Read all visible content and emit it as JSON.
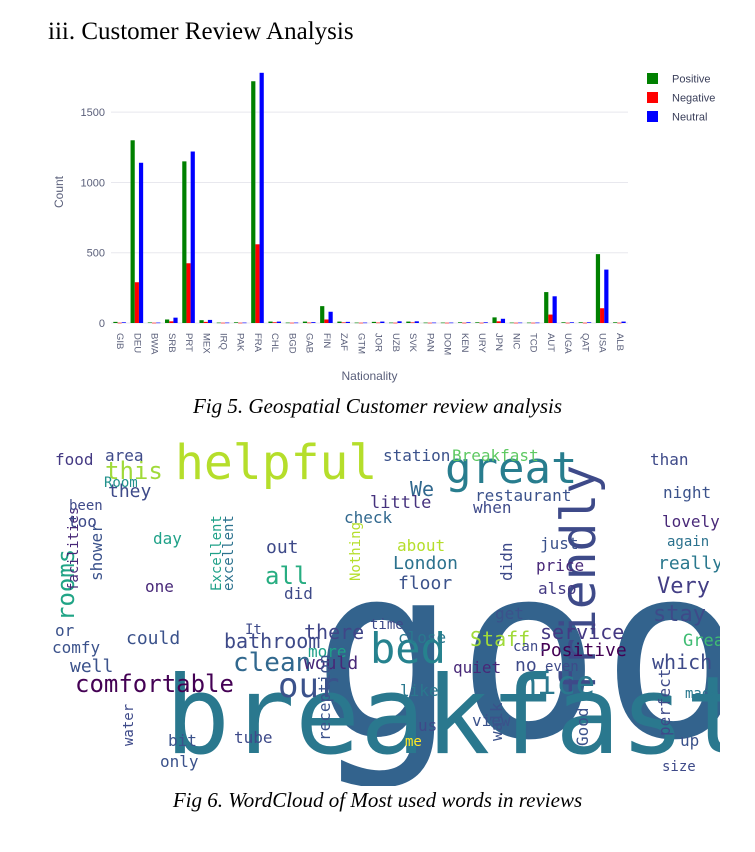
{
  "section_heading": "iii. Customer Review Analysis",
  "fig5_caption": "Fig 5. Geospatial Customer review analysis",
  "fig6_caption": "Fig 6. WordCloud of Most used words in reviews",
  "chart_data": {
    "type": "bar",
    "xlabel": "Nationality",
    "ylabel": "Count",
    "ylim": [
      0,
      1800
    ],
    "yticks": [
      0,
      500,
      1000,
      1500
    ],
    "grid": true,
    "legend_position": "top-right",
    "categories": [
      "GIB",
      "DEU",
      "BWA",
      "SRB",
      "PRT",
      "MEX",
      "IRQ",
      "PAK",
      "FRA",
      "CHL",
      "BGD",
      "GAB",
      "FIN",
      "ZAF",
      "GTM",
      "JOR",
      "UZB",
      "SVK",
      "PAN",
      "DOM",
      "KEN",
      "URY",
      "JPN",
      "NIC",
      "TCD",
      "AUT",
      "UGA",
      "QAT",
      "USA",
      "ALB"
    ],
    "series": [
      {
        "name": "Positive",
        "color": "#008000",
        "values": [
          8,
          1300,
          4,
          25,
          1150,
          20,
          3,
          5,
          1720,
          10,
          3,
          10,
          120,
          10,
          3,
          8,
          3,
          10,
          3,
          3,
          5,
          5,
          40,
          3,
          3,
          220,
          5,
          5,
          490,
          5
        ]
      },
      {
        "name": "Negative",
        "color": "#ff0000",
        "values": [
          2,
          290,
          2,
          12,
          425,
          8,
          2,
          2,
          560,
          5,
          2,
          3,
          25,
          4,
          2,
          3,
          2,
          4,
          2,
          2,
          2,
          2,
          12,
          2,
          2,
          60,
          2,
          2,
          105,
          2
        ]
      },
      {
        "name": "Neutral",
        "color": "#0000ff",
        "values": [
          5,
          1140,
          3,
          38,
          1220,
          22,
          3,
          3,
          1780,
          10,
          3,
          6,
          80,
          8,
          3,
          10,
          12,
          12,
          3,
          3,
          5,
          5,
          30,
          3,
          3,
          190,
          5,
          5,
          380,
          10
        ]
      }
    ]
  },
  "wordcloud": {
    "background": "#ffffff",
    "words": [
      {
        "t": "good",
        "x": 272,
        "y": 295,
        "s": 240,
        "c": "#33638d"
      },
      {
        "t": "breakfast",
        "x": 125,
        "y": 312,
        "s": 108,
        "c": "#2a788e"
      },
      {
        "t": "helpful",
        "x": 135,
        "y": 38,
        "s": 48,
        "c": "#b5de2b"
      },
      {
        "t": "great",
        "x": 405,
        "y": 42,
        "s": 44,
        "c": "#287d8e"
      },
      {
        "t": "friendly",
        "x": 555,
        "y": 255,
        "s": 48,
        "c": "#3e4a89",
        "rot": -90
      },
      {
        "t": "bed",
        "x": 330,
        "y": 222,
        "s": 42,
        "c": "#26828e"
      },
      {
        "t": "comfortable",
        "x": 35,
        "y": 251,
        "s": 24,
        "c": "#440154"
      },
      {
        "t": "our",
        "x": 238,
        "y": 256,
        "s": 34,
        "c": "#3b528b"
      },
      {
        "t": "nice",
        "x": 478,
        "y": 253,
        "s": 32,
        "c": "#2a788e"
      },
      {
        "t": "rooms",
        "x": 34,
        "y": 180,
        "s": 24,
        "c": "#20a486",
        "rot": -90
      },
      {
        "t": "this",
        "x": 65,
        "y": 38,
        "s": 24,
        "c": "#a0da39"
      },
      {
        "t": "they",
        "x": 68,
        "y": 56,
        "s": 18,
        "c": "#3e4a89"
      },
      {
        "t": "Room",
        "x": 64,
        "y": 46,
        "s": 14,
        "c": "#21918c"
      },
      {
        "t": "food",
        "x": 15,
        "y": 24,
        "s": 16,
        "c": "#443983"
      },
      {
        "t": "area",
        "x": 65,
        "y": 20,
        "s": 16,
        "c": "#3e4a89"
      },
      {
        "t": "station",
        "x": 343,
        "y": 20,
        "s": 16,
        "c": "#3b528b"
      },
      {
        "t": "Breakfast",
        "x": 412,
        "y": 20,
        "s": 16,
        "c": "#5ec962"
      },
      {
        "t": "We",
        "x": 370,
        "y": 55,
        "s": 20,
        "c": "#31688e"
      },
      {
        "t": "little",
        "x": 330,
        "y": 67,
        "s": 17,
        "c": "#46327e"
      },
      {
        "t": "restaurant",
        "x": 435,
        "y": 60,
        "s": 16,
        "c": "#3b528b"
      },
      {
        "t": "night",
        "x": 623,
        "y": 57,
        "s": 16,
        "c": "#3b528b"
      },
      {
        "t": "lovely",
        "x": 622,
        "y": 86,
        "s": 16,
        "c": "#482878"
      },
      {
        "t": "again",
        "x": 627,
        "y": 105,
        "s": 14,
        "c": "#2c728e"
      },
      {
        "t": "really",
        "x": 618,
        "y": 128,
        "s": 18,
        "c": "#2a788e"
      },
      {
        "t": "Very",
        "x": 617,
        "y": 152,
        "s": 22,
        "c": "#433e85"
      },
      {
        "t": "stay",
        "x": 613,
        "y": 180,
        "s": 22,
        "c": "#3e4a89"
      },
      {
        "t": "Great",
        "x": 643,
        "y": 205,
        "s": 17,
        "c": "#3fbc73"
      },
      {
        "t": "which",
        "x": 612,
        "y": 228,
        "s": 20,
        "c": "#3e4a89"
      },
      {
        "t": "made",
        "x": 645,
        "y": 257,
        "s": 14,
        "c": "#2a788e"
      },
      {
        "t": "clean",
        "x": 193,
        "y": 230,
        "s": 26,
        "c": "#31688e"
      },
      {
        "t": "bathroom",
        "x": 184,
        "y": 207,
        "s": 20,
        "c": "#3e4a89"
      },
      {
        "t": "service",
        "x": 500,
        "y": 198,
        "s": 20,
        "c": "#443983"
      },
      {
        "t": "Positive",
        "x": 500,
        "y": 215,
        "s": 18,
        "c": "#440154"
      },
      {
        "t": "Staff",
        "x": 430,
        "y": 205,
        "s": 20,
        "c": "#a0da39"
      },
      {
        "t": "there",
        "x": 264,
        "y": 198,
        "s": 20,
        "c": "#404688"
      },
      {
        "t": "more",
        "x": 268,
        "y": 216,
        "s": 16,
        "c": "#1fa188"
      },
      {
        "t": "would",
        "x": 264,
        "y": 228,
        "s": 18,
        "c": "#482878"
      },
      {
        "t": "could",
        "x": 86,
        "y": 203,
        "s": 18,
        "c": "#3b528b"
      },
      {
        "t": "well",
        "x": 30,
        "y": 231,
        "s": 18,
        "c": "#3b528b"
      },
      {
        "t": "comfy",
        "x": 12,
        "y": 212,
        "s": 16,
        "c": "#3b528b"
      },
      {
        "t": "or",
        "x": 15,
        "y": 195,
        "s": 16,
        "c": "#3b528b"
      },
      {
        "t": "all",
        "x": 225,
        "y": 143,
        "s": 24,
        "c": "#27ad81"
      },
      {
        "t": "out",
        "x": 226,
        "y": 112,
        "s": 18,
        "c": "#3e4a89"
      },
      {
        "t": "did",
        "x": 244,
        "y": 158,
        "s": 16,
        "c": "#3e4a89"
      },
      {
        "t": "day",
        "x": 113,
        "y": 103,
        "s": 16,
        "c": "#1fa188"
      },
      {
        "t": "one",
        "x": 105,
        "y": 151,
        "s": 16,
        "c": "#482878"
      },
      {
        "t": "London",
        "x": 353,
        "y": 128,
        "s": 18,
        "c": "#2c728e"
      },
      {
        "t": "about",
        "x": 357,
        "y": 110,
        "s": 16,
        "c": "#b5de2b"
      },
      {
        "t": "floor",
        "x": 358,
        "y": 148,
        "s": 18,
        "c": "#3b528b"
      },
      {
        "t": "check",
        "x": 304,
        "y": 82,
        "s": 16,
        "c": "#31688e"
      },
      {
        "t": "when",
        "x": 433,
        "y": 72,
        "s": 16,
        "c": "#3e4a89"
      },
      {
        "t": "just",
        "x": 500,
        "y": 108,
        "s": 16,
        "c": "#3b528b"
      },
      {
        "t": "price",
        "x": 496,
        "y": 130,
        "s": 16,
        "c": "#482878"
      },
      {
        "t": "also",
        "x": 498,
        "y": 153,
        "s": 16,
        "c": "#443983"
      },
      {
        "t": "get",
        "x": 455,
        "y": 178,
        "s": 16,
        "c": "#3b528b"
      },
      {
        "t": "no",
        "x": 475,
        "y": 230,
        "s": 18,
        "c": "#3e4a89"
      },
      {
        "t": "can.",
        "x": 473,
        "y": 210,
        "s": 14,
        "c": "#3e4a89"
      },
      {
        "t": "even",
        "x": 505,
        "y": 230,
        "s": 14,
        "c": "#3e4a89"
      },
      {
        "t": "quiet",
        "x": 413,
        "y": 232,
        "s": 16,
        "c": "#482878"
      },
      {
        "t": "close",
        "x": 358,
        "y": 202,
        "s": 16,
        "c": "#2a788e"
      },
      {
        "t": "time",
        "x": 330,
        "y": 188,
        "s": 14,
        "c": "#3e4a89"
      },
      {
        "t": "like",
        "x": 360,
        "y": 255,
        "s": 16,
        "c": "#2a788e"
      },
      {
        "t": "us",
        "x": 378,
        "y": 290,
        "s": 16,
        "c": "#3e4a89"
      },
      {
        "t": "view",
        "x": 432,
        "y": 285,
        "s": 16,
        "c": "#3b528b"
      },
      {
        "t": "reception",
        "x": 290,
        "y": 300,
        "s": 16,
        "c": "#3b528b",
        "rot": -90
      },
      {
        "t": "tube",
        "x": 194,
        "y": 302,
        "s": 16,
        "c": "#3e4a89"
      },
      {
        "t": "bit",
        "x": 128,
        "y": 305,
        "s": 16,
        "c": "#3b528b"
      },
      {
        "t": "only",
        "x": 120,
        "y": 326,
        "s": 16,
        "c": "#3b528b"
      },
      {
        "t": "water",
        "x": 93,
        "y": 305,
        "s": 14,
        "c": "#3e4a89",
        "rot": -90
      },
      {
        "t": "shower",
        "x": 62,
        "y": 140,
        "s": 16,
        "c": "#3b528b",
        "rot": -90
      },
      {
        "t": "facilities",
        "x": 38,
        "y": 150,
        "s": 14,
        "c": "#482878",
        "rot": -90
      },
      {
        "t": "too",
        "x": 28,
        "y": 86,
        "s": 16,
        "c": "#3e4a89"
      },
      {
        "t": "been",
        "x": 29,
        "y": 69,
        "s": 14,
        "c": "#3e4a89"
      },
      {
        "t": "Excellent",
        "x": 181,
        "y": 150,
        "s": 14,
        "c": "#1fa188",
        "rot": -90
      },
      {
        "t": "excellent",
        "x": 193,
        "y": 150,
        "s": 14,
        "c": "#2c728e",
        "rot": -90
      },
      {
        "t": "Nothing",
        "x": 320,
        "y": 140,
        "s": 14,
        "c": "#b5de2b",
        "rot": -90
      },
      {
        "t": "didn",
        "x": 472,
        "y": 140,
        "s": 16,
        "c": "#3e4a89",
        "rot": -90
      },
      {
        "t": "perfect",
        "x": 630,
        "y": 295,
        "s": 16,
        "c": "#3e4a89",
        "rot": -90
      },
      {
        "t": "Good",
        "x": 548,
        "y": 305,
        "s": 16,
        "c": "#3b528b",
        "rot": -90
      },
      {
        "t": "walk",
        "x": 462,
        "y": 300,
        "s": 16,
        "c": "#3b528b",
        "rot": -90
      },
      {
        "t": "than",
        "x": 610,
        "y": 24,
        "s": 16,
        "c": "#3e4a89"
      },
      {
        "t": "up",
        "x": 640,
        "y": 305,
        "s": 16,
        "c": "#3b528b"
      },
      {
        "t": "size",
        "x": 622,
        "y": 330,
        "s": 14,
        "c": "#3e4a89"
      },
      {
        "t": "me",
        "x": 365,
        "y": 305,
        "s": 14,
        "c": "#fde725"
      },
      {
        "t": "It",
        "x": 205,
        "y": 193,
        "s": 14,
        "c": "#3e4a89"
      }
    ]
  }
}
